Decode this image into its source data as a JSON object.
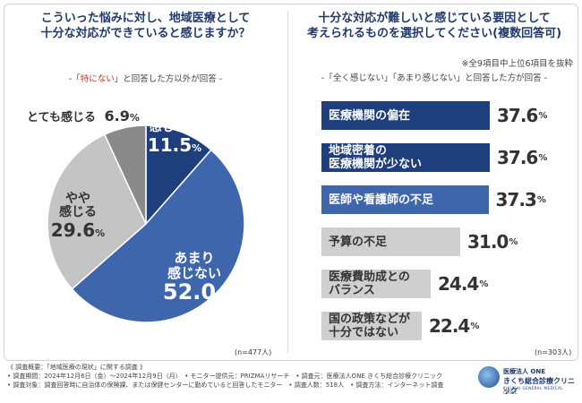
{
  "left": {
    "title_line1": "こういった悩みに対し、地域医療として",
    "title_line2": "十分な対応ができていると感じますか？",
    "note_pre": "-「",
    "note_q": "特にない",
    "note_post": "」と回答した方以外が回答 -",
    "n": "(n=477人)"
  },
  "right": {
    "title_line1": "十分な対応が難しいと感じている要因として",
    "title_line2": "考えられるものを選択してください(複数回答可)",
    "note1": "※全9項目中上位6項目を抜粋",
    "note2": "-「全く感じない」「あまり感じない」と回答した方が回答 -",
    "n": "(n=303人)"
  },
  "colors": {
    "dark_blue": "#1f3e7c",
    "mid_blue": "#3d66ad",
    "light_gray": "#c4c4c4",
    "dark_gray": "#8a8a8a",
    "bar_dark": "#1f3e7c",
    "bar_light": "#3d66ad",
    "bar_gray": "#cfcfcf"
  },
  "chart_data": [
    {
      "type": "pie",
      "title": "こういった悩みに対し、地域医療として十分な対応ができていると感じますか？",
      "slices": [
        {
          "label": "全く感じない",
          "label_line1": "全く",
          "label_line2": "感じない",
          "value": 11.5,
          "num": "11.5",
          "unit": "%"
        },
        {
          "label": "あまり感じない",
          "label_line1": "あまり",
          "label_line2": "感じない",
          "value": 52.0,
          "num": "52.0",
          "unit": "%"
        },
        {
          "label": "やや感じる",
          "label_line1": "やや",
          "label_line2": "感じる",
          "value": 29.6,
          "num": "29.6",
          "unit": "%"
        },
        {
          "label": "とても感じる",
          "value": 6.9,
          "num": "6.9",
          "unit": "%"
        }
      ]
    },
    {
      "type": "bar",
      "orientation": "horizontal",
      "title": "十分な対応が難しいと感じている要因として考えられるものを選択してください(複数回答可)",
      "xlim": [
        0,
        40
      ],
      "bars": [
        {
          "label_line1": "医療機関の偏在",
          "label_line2": "",
          "value": 37.6,
          "num": "37.6",
          "unit": "%"
        },
        {
          "label_line1": "地域密着の",
          "label_line2": "医療機関が少ない",
          "value": 37.6,
          "num": "37.6",
          "unit": "%"
        },
        {
          "label_line1": "医師や看護師の不足",
          "label_line2": "",
          "value": 37.3,
          "num": "37.3",
          "unit": "%"
        },
        {
          "label_line1": "予算の不足",
          "label_line2": "",
          "value": 31.0,
          "num": "31.0",
          "unit": "%"
        },
        {
          "label_line1": "医療費助成との",
          "label_line2": "バランス",
          "value": 24.4,
          "num": "24.4",
          "unit": "%"
        },
        {
          "label_line1": "国の政策などが",
          "label_line2": "十分ではない",
          "value": 22.4,
          "num": "22.4",
          "unit": "%"
        }
      ]
    }
  ],
  "footer": {
    "line1": "《 調査概要：「地域医療の現状」に関する調査 》",
    "line2": "• 調査期間：2024年12月6日（金）〜2024年12月9日（月）　• モニター提供元：PRIZMAリサーチ　• 調査元：医療法人ONE きくち総合診療クリニック",
    "line3": "• 調査対象：調査回答時に自治体の保険課、または保健センターに勤めていると回答したモニター　• 調査人数：518人　• 調査方法：インターネット調査"
  },
  "logo": {
    "line1": "医療法人 ONE",
    "line2": "きくち総合診療クリニック",
    "line3": "KIKUCHI GENERAL MEDICAL CLINIC"
  }
}
